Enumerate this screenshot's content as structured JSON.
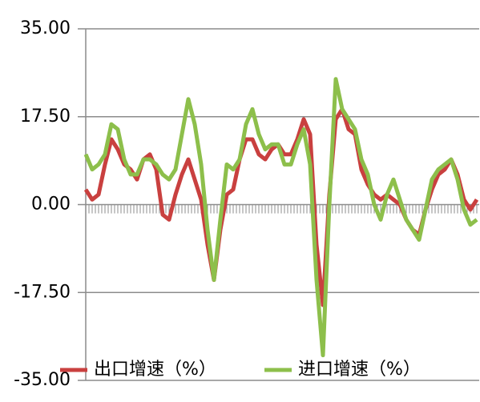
{
  "chart_data": {
    "type": "line",
    "categories": [
      null,
      null,
      null,
      null,
      null,
      null,
      null,
      null,
      null,
      null,
      null,
      null,
      null,
      null,
      null,
      null,
      null,
      null,
      null,
      null,
      null,
      null,
      null,
      null,
      null,
      null,
      null,
      null,
      null,
      null,
      null,
      null,
      null,
      null,
      null,
      null,
      null,
      null,
      null,
      null,
      null,
      null,
      null,
      null,
      null,
      null,
      null,
      null,
      null,
      null,
      null,
      null,
      null,
      null,
      null,
      null,
      null,
      null,
      null,
      null,
      null,
      null
    ],
    "series": [
      {
        "name": "出口增速（%）",
        "color": "#c9403f",
        "values": [
          3,
          1,
          2,
          8,
          13,
          11,
          8,
          7,
          5,
          9,
          10,
          7,
          -2,
          -3,
          2,
          6,
          9,
          5,
          1,
          -8,
          -15,
          -5,
          2,
          3,
          9,
          13,
          13,
          10,
          9,
          11,
          12,
          10,
          10,
          13,
          17,
          14,
          -8,
          -20,
          2,
          17,
          19,
          15,
          14,
          7,
          4,
          2,
          1,
          2,
          1,
          0,
          -3,
          -5,
          -6,
          -1,
          3,
          6,
          7,
          9,
          6,
          1,
          -1,
          1
        ]
      },
      {
        "name": "进口增速（%）",
        "color": "#8dbf4b",
        "values": [
          10,
          7,
          8,
          10,
          16,
          15,
          9,
          6,
          6,
          9,
          9,
          8,
          6,
          5,
          7,
          14,
          21,
          16,
          8,
          -5,
          -15,
          -3,
          8,
          7,
          9,
          16,
          19,
          14,
          11,
          12,
          12,
          8,
          8,
          12,
          15,
          8,
          -15,
          -30,
          0,
          25,
          19,
          17,
          15,
          9,
          6,
          0,
          -3,
          2,
          5,
          1,
          -3,
          -5,
          -7,
          -1,
          5,
          7,
          8,
          9,
          5,
          -1,
          -4,
          -3
        ]
      }
    ],
    "ylim": [
      -35,
      35
    ],
    "yticks": [
      {
        "value": -35,
        "label": "-35.00"
      },
      {
        "value": -17.5,
        "label": "-17.50"
      },
      {
        "value": 0,
        "label": "0.00"
      },
      {
        "value": 17.5,
        "label": "17.50"
      },
      {
        "value": 35,
        "label": "35.00"
      }
    ],
    "grid": true
  }
}
